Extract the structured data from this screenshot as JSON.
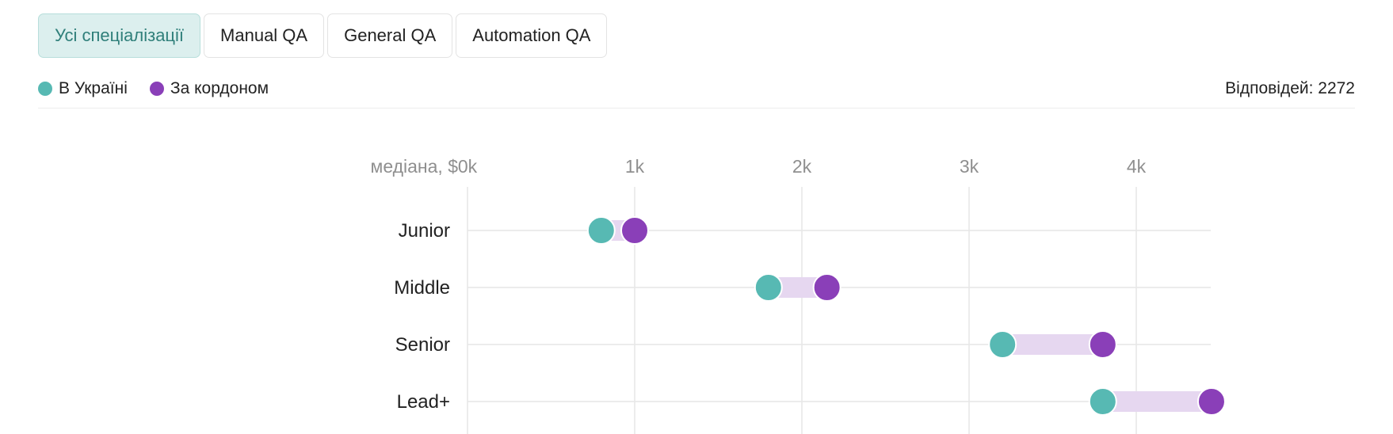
{
  "tabs": [
    {
      "label": "Усі спеціалізації",
      "active": true
    },
    {
      "label": "Manual QA",
      "active": false
    },
    {
      "label": "General QA",
      "active": false
    },
    {
      "label": "Automation QA",
      "active": false
    }
  ],
  "legend": [
    {
      "label": "В Україні",
      "color": "#57b9b3"
    },
    {
      "label": "За кордоном",
      "color": "#8a3fb8"
    }
  ],
  "responses": "Відповідей: 2272",
  "chart_data": {
    "type": "dumbbell",
    "axis_title": "медіана, $",
    "x_ticks": [
      {
        "value": 0,
        "label": "0k"
      },
      {
        "value": 1000,
        "label": "1k"
      },
      {
        "value": 2000,
        "label": "2k"
      },
      {
        "value": 3000,
        "label": "3k"
      },
      {
        "value": 4000,
        "label": "4k"
      }
    ],
    "xlim": [
      0,
      4450
    ],
    "categories": [
      "Junior",
      "Middle",
      "Senior",
      "Lead+"
    ],
    "series": [
      {
        "name": "В Україні",
        "color": "#57b9b3",
        "values": [
          800,
          1800,
          3200,
          3800
        ]
      },
      {
        "name": "За кордоном",
        "color": "#8a3fb8",
        "values": [
          1000,
          2150,
          3800,
          4450
        ]
      }
    ],
    "grid": true
  }
}
